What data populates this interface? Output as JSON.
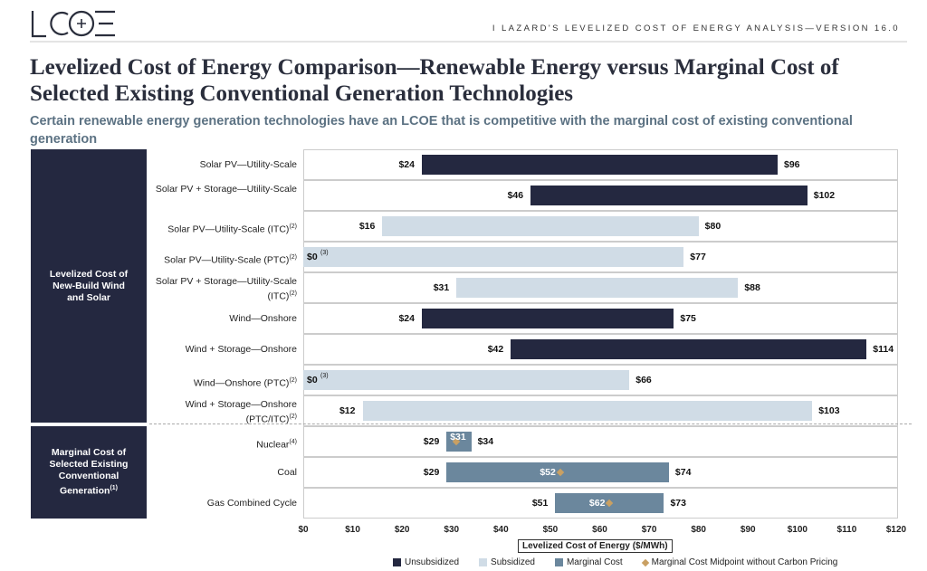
{
  "header": {
    "logo": "LCOE",
    "section": "I   LAZARD'S LEVELIZED COST OF ENERGY ANALYSIS—VERSION 16.0"
  },
  "title": "Levelized Cost of Energy Comparison—Renewable Energy versus Marginal Cost of Selected Existing Conventional Generation Technologies",
  "subtitle": "Certain renewable energy generation technologies have an LCOE that is competitive with the marginal cost of existing conventional generation",
  "groups": {
    "g1": "Levelized Cost of New-Build Wind and Solar",
    "g2": "Marginal Cost of Selected Existing Conventional Generation",
    "g2_sup": "(1)"
  },
  "colors": {
    "unsubsidized": "#242840",
    "subsidized": "#d0dce6",
    "marginal": "#6b879d",
    "midpoint": "#c9a063"
  },
  "chart_data": {
    "type": "bar",
    "orientation": "horizontal-floating",
    "xlabel": "Levelized Cost of Energy ($/MWh)",
    "xlim": [
      0,
      120
    ],
    "ticks": [
      "$0",
      "$10",
      "$20",
      "$30",
      "$40",
      "$50",
      "$60",
      "$70",
      "$80",
      "$90",
      "$100",
      "$110",
      "$120"
    ],
    "legend": [
      "Unsubsidized",
      "Subsidized",
      "Marginal Cost",
      "Marginal Cost Midpoint without Carbon Pricing"
    ],
    "legend_position": "bottom",
    "rows": [
      {
        "label": "Solar PV—Utility-Scale",
        "sup": "",
        "series": "Unsubsidized",
        "low": 24,
        "high": 96,
        "low_label": "$24",
        "high_label": "$96"
      },
      {
        "label": "Solar PV + Storage—Utility-Scale",
        "sup": "",
        "series": "Unsubsidized",
        "low": 46,
        "high": 102,
        "low_label": "$46",
        "high_label": "$102"
      },
      {
        "label": "Solar PV—Utility-Scale (ITC)",
        "sup": "(2)",
        "series": "Subsidized",
        "low": 16,
        "high": 80,
        "low_label": "$16",
        "high_label": "$80"
      },
      {
        "label": "Solar PV—Utility-Scale (PTC)",
        "sup": "(2)",
        "series": "Subsidized",
        "low": 0,
        "high": 77,
        "low_label": "$0",
        "low_sup": "(3)",
        "high_label": "$77"
      },
      {
        "label": "Solar PV + Storage—Utility-Scale (ITC)",
        "sup": "(2)",
        "series": "Subsidized",
        "low": 31,
        "high": 88,
        "low_label": "$31",
        "high_label": "$88"
      },
      {
        "label": "Wind—Onshore",
        "sup": "",
        "series": "Unsubsidized",
        "low": 24,
        "high": 75,
        "low_label": "$24",
        "high_label": "$75"
      },
      {
        "label": "Wind + Storage—Onshore",
        "sup": "",
        "series": "Unsubsidized",
        "low": 42,
        "high": 114,
        "low_label": "$42",
        "high_label": "$114"
      },
      {
        "label": "Wind—Onshore (PTC)",
        "sup": "(2)",
        "series": "Subsidized",
        "low": 0,
        "high": 66,
        "low_label": "$0",
        "low_sup": "(3)",
        "high_label": "$66"
      },
      {
        "label": "Wind + Storage—Onshore (PTC/ITC)",
        "sup": "(2)",
        "series": "Subsidized",
        "low": 12,
        "high": 103,
        "low_label": "$12",
        "high_label": "$103"
      },
      {
        "label": "Nuclear",
        "sup": "(4)",
        "series": "Marginal Cost",
        "low": 29,
        "high": 34,
        "mid": 31,
        "low_label": "$29",
        "high_label": "$34",
        "mid_label": "$31"
      },
      {
        "label": "Coal",
        "sup": "",
        "series": "Marginal Cost",
        "low": 29,
        "high": 74,
        "mid": 52,
        "low_label": "$29",
        "high_label": "$74",
        "mid_label": "$52"
      },
      {
        "label": "Gas Combined Cycle",
        "sup": "",
        "series": "Marginal Cost",
        "low": 51,
        "high": 73,
        "mid": 62,
        "low_label": "$51",
        "high_label": "$73",
        "mid_label": "$62"
      }
    ]
  }
}
